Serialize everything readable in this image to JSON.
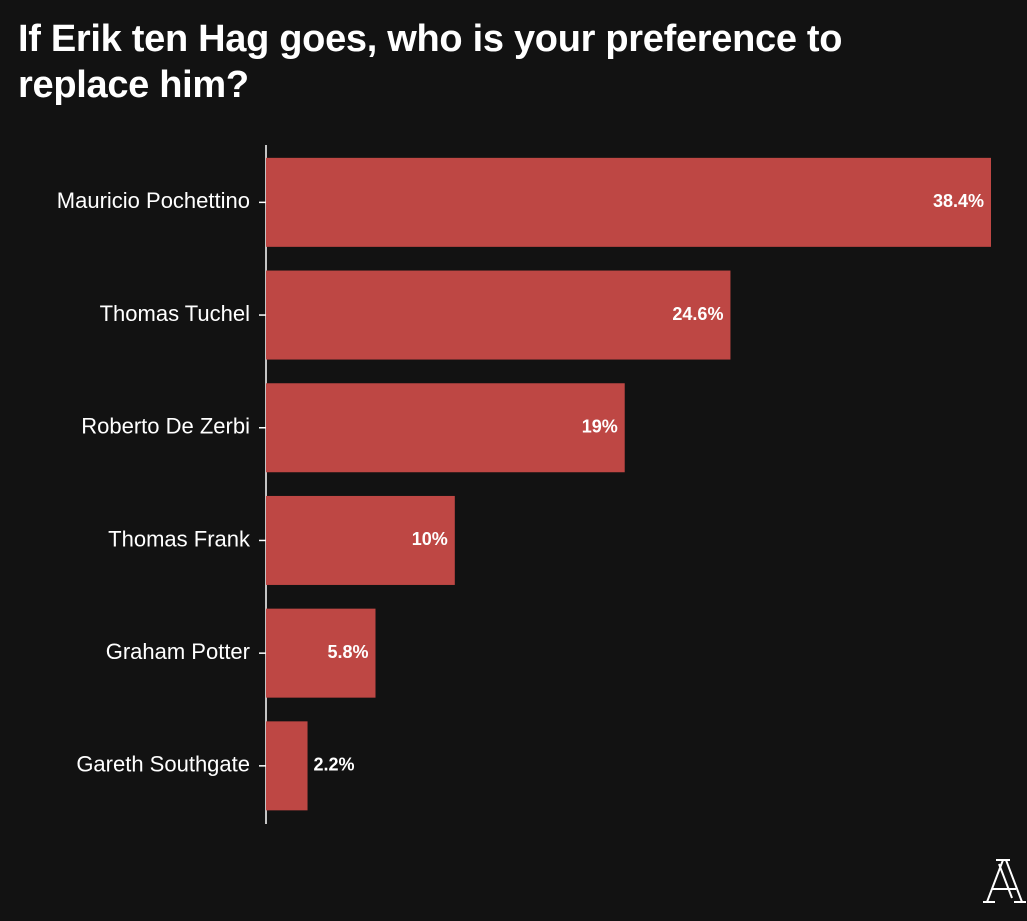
{
  "chart_data": {
    "type": "bar",
    "orientation": "horizontal",
    "title": "If Erik ten Hag goes, who is your preference to replace him?",
    "categories": [
      "Mauricio Pochettino",
      "Thomas Tuchel",
      "Roberto De Zerbi",
      "Thomas Frank",
      "Graham Potter",
      "Gareth Southgate"
    ],
    "values": [
      38.4,
      24.6,
      19,
      10,
      5.8,
      2.2
    ],
    "value_labels": [
      "38.4%",
      "24.6%",
      "19%",
      "10%",
      "5.8%",
      "2.2%"
    ],
    "color": "#be4744"
  }
}
